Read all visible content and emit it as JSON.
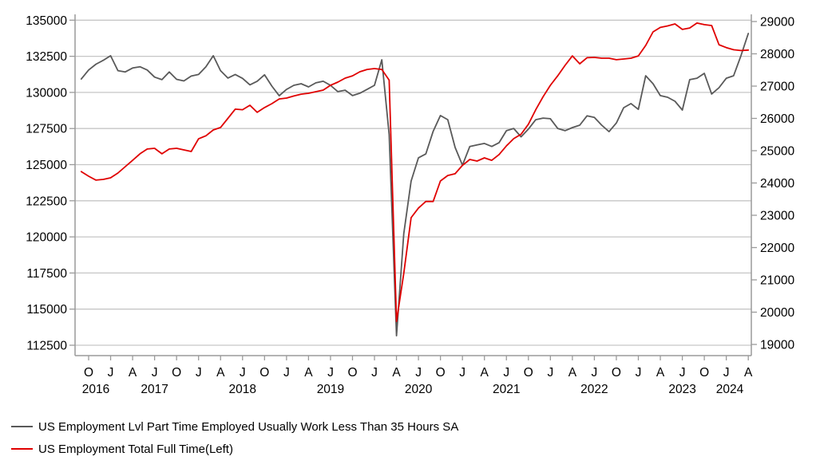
{
  "colors": {
    "background": "#ffffff",
    "part_time_line": "#595959",
    "full_time_line": "#e00000",
    "gridline": "#c6c6c6",
    "axis_line": "#9a9a9a",
    "tick_text": "#000000"
  },
  "legend": {
    "items": [
      {
        "label": "US Employment Lvl Part Time Employed Usually Work Less Than 35 Hours SA",
        "color": "#595959"
      },
      {
        "label": "US Employment Total Full Time(Left)",
        "color": "#e00000"
      }
    ]
  },
  "chart_data": {
    "type": "line",
    "title": "",
    "xlabel": "",
    "ylabel_left": "",
    "ylabel_right": "",
    "frequency": "monthly",
    "x_start": "2016-09",
    "x_end": "2024-04",
    "left_axis": {
      "min": 112500,
      "max": 135000,
      "step": 2500,
      "tick_labels": [
        "135000",
        "132500",
        "130000",
        "127500",
        "125000",
        "122500",
        "120000",
        "117500",
        "115000",
        "112500"
      ]
    },
    "right_axis": {
      "min": 19000,
      "max": 29000,
      "step": 1000,
      "tick_labels": [
        "29000",
        "28000",
        "27000",
        "26000",
        "25000",
        "24000",
        "23000",
        "22000",
        "21000",
        "20000",
        "19000"
      ]
    },
    "x_tick_labels": [
      "O",
      "J",
      "A",
      "J",
      "O",
      "J",
      "A",
      "J",
      "O",
      "J",
      "A",
      "J",
      "O",
      "J",
      "A",
      "J",
      "O",
      "J",
      "A",
      "J",
      "O",
      "J",
      "A",
      "J",
      "O",
      "J",
      "A",
      "J",
      "O",
      "J",
      "A"
    ],
    "x_tick_first_month_index": 1,
    "x_tick_month_interval": 3,
    "year_labels": [
      "2016",
      "2017",
      "2018",
      "2019",
      "2020",
      "2021",
      "2022",
      "2023",
      "2024"
    ],
    "grid": true,
    "legend_position": "bottom-left",
    "series": [
      {
        "name": "US Employment Lvl Part Time Employed Usually Work Less Than 35 Hours SA",
        "axis": "right",
        "color": "#595959",
        "values": [
          27220,
          27500,
          27680,
          27800,
          27940,
          27480,
          27440,
          27560,
          27600,
          27500,
          27280,
          27200,
          27440,
          27210,
          27160,
          27310,
          27360,
          27600,
          27940,
          27480,
          27250,
          27360,
          27240,
          27040,
          27150,
          27350,
          27000,
          26700,
          26900,
          27025,
          27075,
          26975,
          27100,
          27150,
          27025,
          26830,
          26875,
          26705,
          26780,
          26900,
          27025,
          27815,
          25500,
          19270,
          22430,
          24060,
          24780,
          24900,
          25600,
          26090,
          25960,
          25100,
          24550,
          25130,
          25180,
          25225,
          25130,
          25250,
          25620,
          25690,
          25430,
          25670,
          25960,
          26010,
          25990,
          25690,
          25620,
          25715,
          25790,
          26080,
          26030,
          25790,
          25590,
          25860,
          26330,
          26460,
          26280,
          27320,
          27075,
          26705,
          26655,
          26530,
          26260,
          27200,
          27245,
          27395,
          26755,
          26950,
          27245,
          27320,
          27940,
          28630
        ]
      },
      {
        "name": "US Employment Total Full Time(Left)",
        "axis": "left",
        "color": "#e00000",
        "values": [
          124520,
          124200,
          123930,
          123980,
          124090,
          124420,
          124860,
          125300,
          125750,
          126080,
          126130,
          125750,
          126080,
          126130,
          126020,
          125910,
          126790,
          127000,
          127400,
          127570,
          128200,
          128840,
          128800,
          129110,
          128620,
          128950,
          129220,
          129550,
          129610,
          129750,
          129880,
          129940,
          130050,
          130160,
          130490,
          130710,
          130990,
          131150,
          131430,
          131590,
          131650,
          131590,
          130850,
          114150,
          117470,
          121330,
          122000,
          122450,
          122450,
          123870,
          124250,
          124370,
          124950,
          125360,
          125250,
          125470,
          125300,
          125700,
          126300,
          126800,
          127100,
          127800,
          128800,
          129700,
          130490,
          131150,
          131870,
          132530,
          131980,
          132400,
          132420,
          132370,
          132370,
          132260,
          132310,
          132370,
          132530,
          133250,
          134190,
          134500,
          134600,
          134740,
          134360,
          134460,
          134800,
          134690,
          134630,
          133300,
          133100,
          132950,
          132900,
          132930
        ]
      }
    ]
  }
}
